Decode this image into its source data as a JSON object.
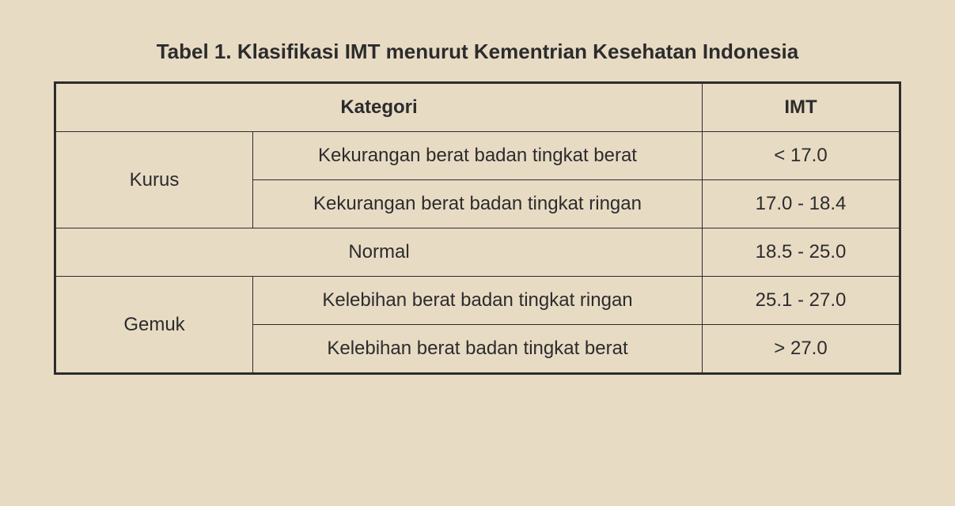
{
  "table": {
    "title": "Tabel 1. Klasifikasi IMT menurut Kementrian Kesehatan Indonesia",
    "columns": {
      "category": "Kategori",
      "imt": "IMT"
    },
    "background_color": "#e8dbc4",
    "border_color": "#2c2c2c",
    "text_color": "#2c2c2c",
    "outer_border_width": 3,
    "inner_border_width": 1.5,
    "title_fontsize": 26,
    "cell_fontsize": 24,
    "rows": [
      {
        "group": "Kurus",
        "subcategory": "Kekurangan berat badan tingkat berat",
        "imt": "< 17.0"
      },
      {
        "group": "Kurus",
        "subcategory": "Kekurangan berat badan tingkat ringan",
        "imt": "17.0 - 18.4"
      },
      {
        "group": "Normal",
        "subcategory": "Normal",
        "imt": "18.5 - 25.0"
      },
      {
        "group": "Gemuk",
        "subcategory": "Kelebihan berat badan tingkat ringan",
        "imt": "25.1 - 27.0"
      },
      {
        "group": "Gemuk",
        "subcategory": "Kelebihan berat badan tingkat berat",
        "imt": "> 27.0"
      }
    ],
    "col_widths": {
      "category_label": 250,
      "subcategory": "auto",
      "imt": 250
    }
  }
}
